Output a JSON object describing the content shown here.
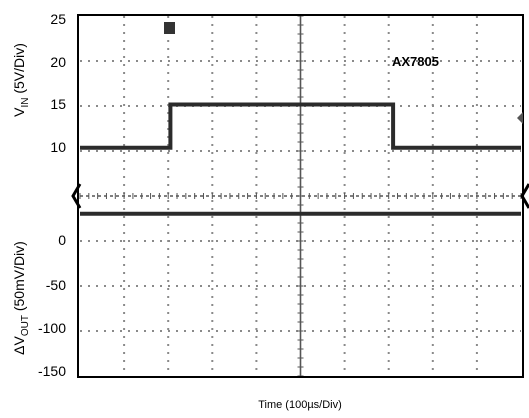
{
  "chart_data": {
    "type": "line",
    "xlabel": "Time (100µs/Div)",
    "x_divisions": 10,
    "x_unit": "100µs/Div",
    "grid": true,
    "panels": [
      {
        "id": "vin",
        "ylabel_main": "V",
        "ylabel_sub": "IN",
        "ylabel_rest": " (5V/Div)",
        "yticks": [
          "25",
          "20",
          "15",
          "10"
        ],
        "ylim": [
          5,
          25
        ],
        "series": [
          {
            "x": [
              0,
              2.05,
              2.05,
              7.1,
              7.1,
              10
            ],
            "y": [
              10,
              10,
              15,
              15,
              10,
              10
            ]
          }
        ]
      },
      {
        "id": "vout",
        "ylabel_main": "ΔV",
        "ylabel_sub": "OUT",
        "ylabel_rest": " (50mV/Div)",
        "yticks": [
          "0",
          "-50",
          "-100",
          "-150"
        ],
        "ylim": [
          -150,
          15
        ],
        "series": [
          {
            "x": [
              0,
              10
            ],
            "y": [
              0,
              0
            ]
          }
        ]
      }
    ],
    "annotations": [
      {
        "text": "AX7805"
      }
    ]
  }
}
